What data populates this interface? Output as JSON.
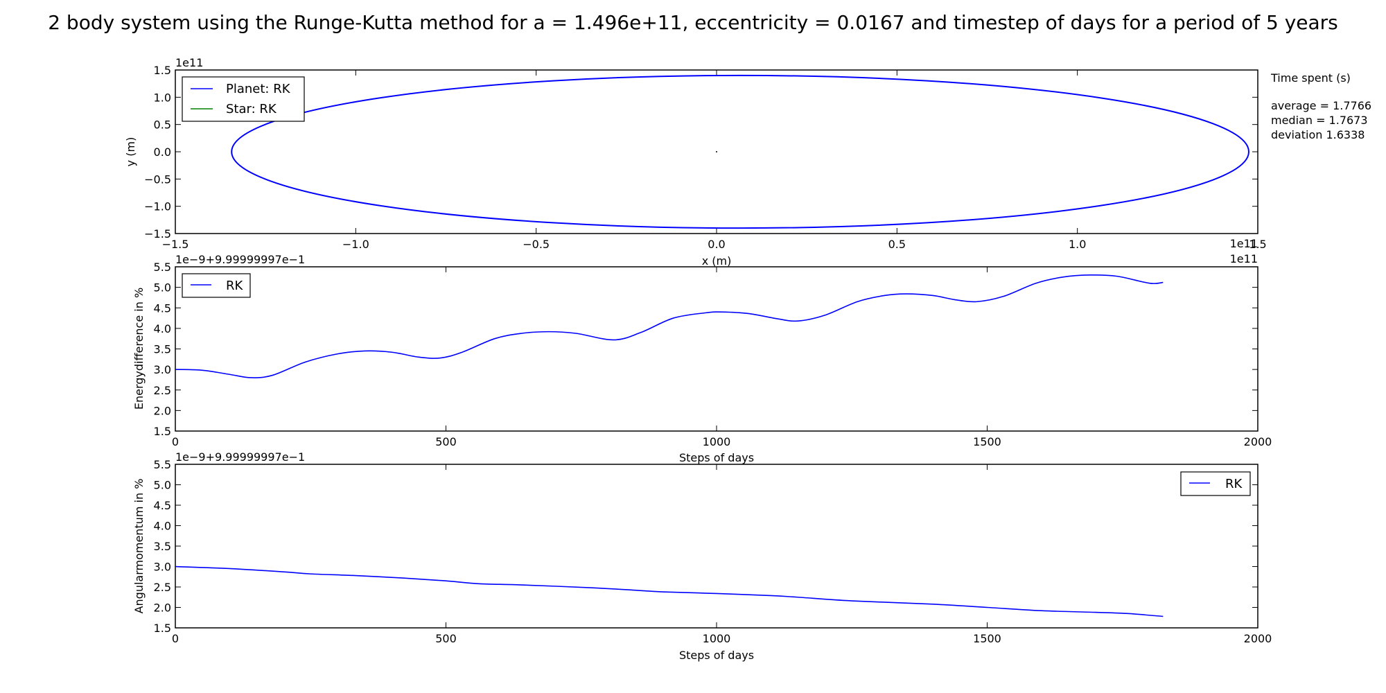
{
  "figure": {
    "title": "2 body system using the Runge-Kutta method for a = 1.496e+11, eccentricity = 0.0167 and timestep of days for a period of 5 years",
    "timing": {
      "heading": "Time spent (s)",
      "lines": [
        "average = 1.7766",
        "median = 1.7673",
        "deviation 1.6338"
      ]
    }
  },
  "colors": {
    "planet": "#0000ff",
    "star": "#008000",
    "rk": "#0000ff"
  },
  "chart_data": [
    {
      "type": "line",
      "xlabel": "x (m)",
      "ylabel": "y (m)",
      "xlim": [
        -150000000000,
        150000000000
      ],
      "ylim": [
        -150000000000,
        150000000000
      ],
      "xticks": [
        -150000000000,
        -100000000000,
        -50000000000,
        0,
        50000000000,
        100000000000,
        150000000000
      ],
      "yticks": [
        -150000000000,
        -100000000000,
        -50000000000,
        0,
        50000000000,
        100000000000,
        150000000000
      ],
      "xtick_labels": [
        "−1.5",
        "−1.0",
        "−0.5",
        "0.0",
        "0.5",
        "1.0",
        "1.5"
      ],
      "ytick_labels": [
        "−1.5",
        "−1.0",
        "−0.5",
        "0.0",
        "0.5",
        "1.0",
        "1.5"
      ],
      "x_offset_label": "1e11",
      "y_offset_label": "1e11",
      "legend_position": "upper left",
      "orbit": {
        "x_min": -134400000000,
        "x_max": 147500000000,
        "y_min": -140000000000,
        "y_max": 140000000000
      },
      "series": [
        {
          "name": "Planet: RK",
          "color": "#0000ff",
          "shape": "ellipse orbit"
        },
        {
          "name": "Star: RK",
          "color": "#008000",
          "x": [
            0
          ],
          "y": [
            0
          ]
        }
      ]
    },
    {
      "type": "line",
      "xlabel": "Steps of days",
      "ylabel": "Energydifference in %",
      "xlim": [
        0,
        2000
      ],
      "ylim": [
        1.5,
        5.5
      ],
      "xticks": [
        0,
        500,
        1000,
        1500,
        2000
      ],
      "yticks": [
        1.5,
        2.0,
        2.5,
        3.0,
        3.5,
        4.0,
        4.5,
        5.0,
        5.5
      ],
      "xtick_labels": [
        "0",
        "500",
        "1000",
        "1500",
        "2000"
      ],
      "ytick_labels": [
        "1.5",
        "2.0",
        "2.5",
        "3.0",
        "3.5",
        "4.0",
        "4.5",
        "5.0",
        "5.5"
      ],
      "y_offset_label": "1e−9+9.99999997e−1",
      "x_offset_label": "1e11",
      "legend_position": "upper left",
      "series": [
        {
          "name": "RK",
          "color": "#0000ff",
          "x": [
            0,
            50,
            100,
            140,
            180,
            240,
            300,
            350,
            400,
            450,
            490,
            530,
            590,
            640,
            690,
            740,
            810,
            860,
            920,
            980,
            1010,
            1060,
            1110,
            1150,
            1200,
            1260,
            1310,
            1350,
            1400,
            1440,
            1480,
            1530,
            1590,
            1640,
            1690,
            1740,
            1800,
            1825
          ],
          "y": [
            3.0,
            2.98,
            2.88,
            2.8,
            2.86,
            3.18,
            3.38,
            3.45,
            3.42,
            3.3,
            3.28,
            3.42,
            3.75,
            3.88,
            3.92,
            3.88,
            3.72,
            3.9,
            4.25,
            4.38,
            4.4,
            4.36,
            4.24,
            4.18,
            4.32,
            4.65,
            4.8,
            4.84,
            4.8,
            4.7,
            4.65,
            4.78,
            5.1,
            5.25,
            5.3,
            5.27,
            5.1,
            5.12
          ]
        }
      ]
    },
    {
      "type": "line",
      "xlabel": "Steps of days",
      "ylabel": "Angularmomentum in  %",
      "xlim": [
        0,
        2000
      ],
      "ylim": [
        1.5,
        5.5
      ],
      "xticks": [
        0,
        500,
        1000,
        1500,
        2000
      ],
      "yticks": [
        1.5,
        2.0,
        2.5,
        3.0,
        3.5,
        4.0,
        4.5,
        5.0,
        5.5
      ],
      "xtick_labels": [
        "0",
        "500",
        "1000",
        "1500",
        "2000"
      ],
      "ytick_labels": [
        "1.5",
        "2.0",
        "2.5",
        "3.0",
        "3.5",
        "4.0",
        "4.5",
        "5.0",
        "5.5"
      ],
      "y_offset_label": "1e−9+9.99999997e−1",
      "legend_position": "upper right",
      "series": [
        {
          "name": "RK",
          "color": "#0000ff",
          "x": [
            0,
            100,
            200,
            250,
            330,
            420,
            500,
            560,
            640,
            770,
            850,
            900,
            1000,
            1100,
            1150,
            1250,
            1400,
            1500,
            1600,
            1700,
            1760,
            1825
          ],
          "y": [
            3.0,
            2.95,
            2.87,
            2.82,
            2.78,
            2.72,
            2.65,
            2.58,
            2.55,
            2.48,
            2.42,
            2.38,
            2.34,
            2.29,
            2.25,
            2.16,
            2.08,
            2.0,
            1.92,
            1.88,
            1.85,
            1.78
          ]
        }
      ]
    }
  ]
}
